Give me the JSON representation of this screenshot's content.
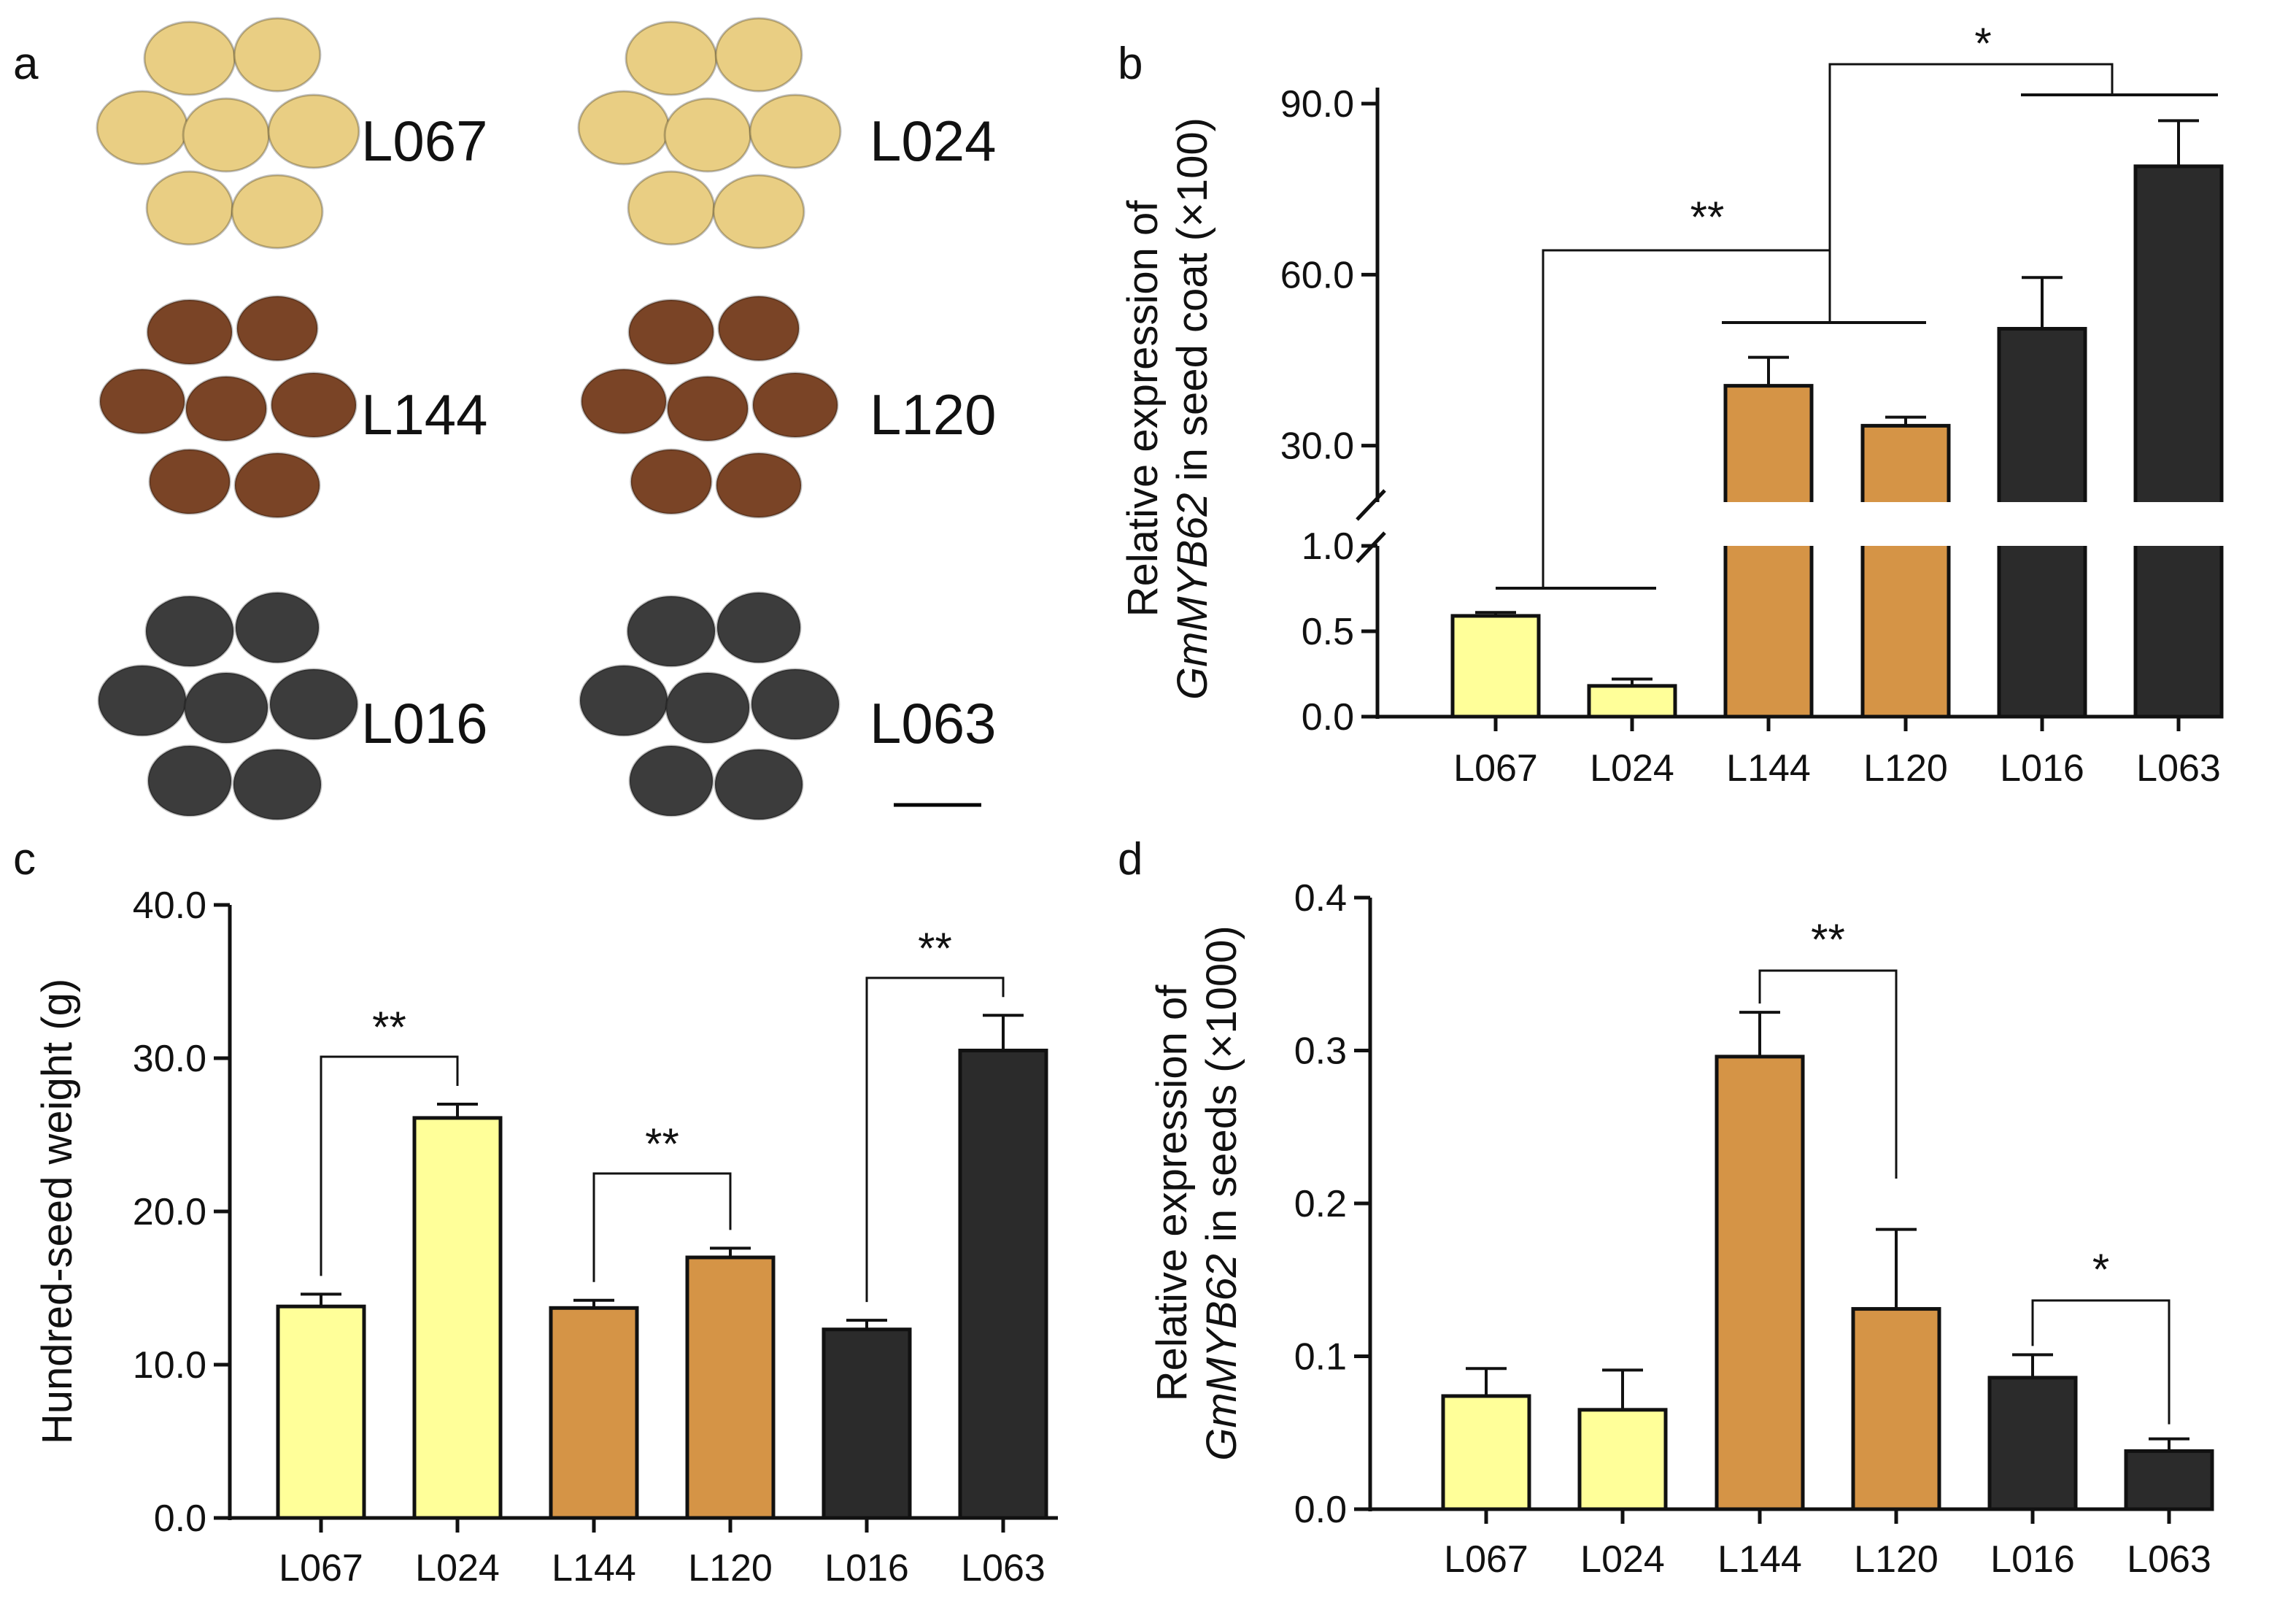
{
  "colors": {
    "yellow": "#FFFF99",
    "brown": "#D59446",
    "black": "#2B2B2B",
    "line": "#111111",
    "seed_yellow": "#E9CE83",
    "seed_brown": "#7A4426",
    "seed_black": "#3C3C3C"
  },
  "panels": {
    "a": "a",
    "b": "b",
    "c": "c",
    "d": "d"
  },
  "seed_photo": {
    "labels": [
      "L067",
      "L024",
      "L144",
      "L120",
      "L016",
      "L063"
    ],
    "colors": [
      "seed_yellow",
      "seed_yellow",
      "seed_brown",
      "seed_brown",
      "seed_black",
      "seed_black"
    ]
  },
  "chart_data": [
    {
      "id": "b",
      "type": "bar",
      "broken_axis": true,
      "categories": [
        "L067",
        "L024",
        "L144",
        "L120",
        "L016",
        "L063"
      ],
      "values": [
        0.59,
        0.18,
        40.5,
        33.5,
        50.5,
        79.0
      ],
      "errors": [
        0.02,
        0.04,
        5.0,
        1.5,
        9.0,
        8.0
      ],
      "colors": [
        "yellow",
        "yellow",
        "brown",
        "brown",
        "black",
        "black"
      ],
      "ylabel_line1": "Relative expression of",
      "ylabel_line2_italic": "GmMYB62",
      "ylabel_line2_rest": " in seed coat (×100)",
      "lower_ylim": [
        0,
        1.0
      ],
      "lower_ticks": [
        "0.0",
        "0.5",
        "1.0"
      ],
      "upper_ylim": [
        20,
        90
      ],
      "upper_ticks": [
        "30.0",
        "60.0",
        "90.0"
      ],
      "significance": [
        {
          "label": "**",
          "between": "L067,L024 vs L144,L120"
        },
        {
          "label": "*",
          "between": "L144,L120 vs L016,L063"
        }
      ]
    },
    {
      "id": "c",
      "type": "bar",
      "categories": [
        "L067",
        "L024",
        "L144",
        "L120",
        "L016",
        "L063"
      ],
      "values": [
        13.8,
        26.1,
        13.7,
        17.0,
        12.3,
        30.5
      ],
      "errors": [
        0.8,
        0.9,
        0.5,
        0.6,
        0.6,
        2.3
      ],
      "colors": [
        "yellow",
        "yellow",
        "brown",
        "brown",
        "black",
        "black"
      ],
      "ylabel": "Hundred-seed weight (g)",
      "ylim": [
        0,
        40
      ],
      "ticks": [
        "0.0",
        "10.0",
        "20.0",
        "30.0",
        "40.0"
      ],
      "significance": [
        {
          "label": "**",
          "pair": [
            "L067",
            "L024"
          ]
        },
        {
          "label": "**",
          "pair": [
            "L144",
            "L120"
          ]
        },
        {
          "label": "**",
          "pair": [
            "L016",
            "L063"
          ]
        }
      ]
    },
    {
      "id": "d",
      "type": "bar",
      "categories": [
        "L067",
        "L024",
        "L144",
        "L120",
        "L016",
        "L063"
      ],
      "values": [
        0.074,
        0.065,
        0.296,
        0.131,
        0.086,
        0.038
      ],
      "errors": [
        0.018,
        0.026,
        0.029,
        0.052,
        0.015,
        0.008
      ],
      "colors": [
        "yellow",
        "yellow",
        "brown",
        "brown",
        "black",
        "black"
      ],
      "ylabel_line1": "Relative expression of",
      "ylabel_line2_italic": "GmMYB62",
      "ylabel_line2_rest": " in seeds (×1000)",
      "ylim": [
        0,
        0.4
      ],
      "ticks": [
        "0.0",
        "0.1",
        "0.2",
        "0.3",
        "0.4"
      ],
      "significance": [
        {
          "label": "**",
          "pair": [
            "L144",
            "L120"
          ]
        },
        {
          "label": "*",
          "pair": [
            "L016",
            "L063"
          ]
        }
      ]
    }
  ]
}
